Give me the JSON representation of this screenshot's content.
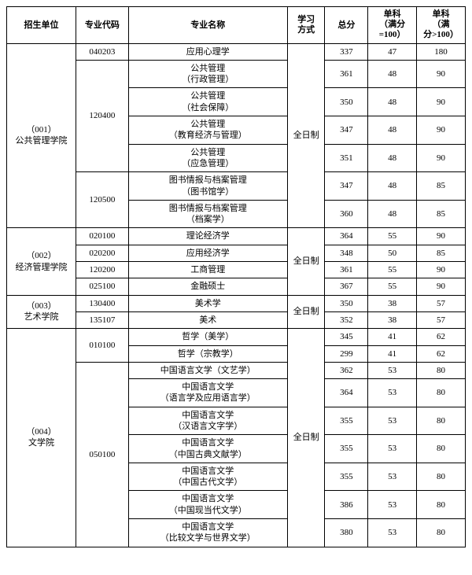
{
  "headers": {
    "unit": "招生单位",
    "code": "专业代码",
    "major": "专业名称",
    "mode": "学习\n方式",
    "total": "总分",
    "sub1": "单科\n（满分\n=100）",
    "sub2": "单科\n（满\n分>100）"
  },
  "groups": [
    {
      "unit": "（001）\n公共管理学院",
      "mode": "全日制",
      "codeBlocks": [
        {
          "code": "040203",
          "rows": [
            {
              "major": "应用心理学",
              "total": 337,
              "s1": 47,
              "s2": 180
            }
          ]
        },
        {
          "code": "120400",
          "rows": [
            {
              "major": "公共管理\n（行政管理）",
              "total": 361,
              "s1": 48,
              "s2": 90
            },
            {
              "major": "公共管理\n（社会保障）",
              "total": 350,
              "s1": 48,
              "s2": 90
            },
            {
              "major": "公共管理\n（教育经济与管理）",
              "total": 347,
              "s1": 48,
              "s2": 90
            },
            {
              "major": "公共管理\n（应急管理）",
              "total": 351,
              "s1": 48,
              "s2": 90
            }
          ]
        },
        {
          "code": "120500",
          "rows": [
            {
              "major": "图书情报与档案管理\n（图书馆学）",
              "total": 347,
              "s1": 48,
              "s2": 85
            },
            {
              "major": "图书情报与档案管理\n（档案学）",
              "total": 360,
              "s1": 48,
              "s2": 85
            }
          ]
        }
      ]
    },
    {
      "unit": "（002）\n经济管理学院",
      "mode": "全日制",
      "codeBlocks": [
        {
          "code": "020100",
          "rows": [
            {
              "major": "理论经济学",
              "total": 364,
              "s1": 55,
              "s2": 90
            }
          ]
        },
        {
          "code": "020200",
          "rows": [
            {
              "major": "应用经济学",
              "total": 348,
              "s1": 50,
              "s2": 85
            }
          ]
        },
        {
          "code": "120200",
          "rows": [
            {
              "major": "工商管理",
              "total": 361,
              "s1": 55,
              "s2": 90
            }
          ]
        },
        {
          "code": "025100",
          "rows": [
            {
              "major": "金融硕士",
              "total": 367,
              "s1": 55,
              "s2": 90
            }
          ]
        }
      ]
    },
    {
      "unit": "（003）\n艺术学院",
      "mode": "全日制",
      "codeBlocks": [
        {
          "code": "130400",
          "rows": [
            {
              "major": "美术学",
              "total": 350,
              "s1": 38,
              "s2": 57
            }
          ]
        },
        {
          "code": "135107",
          "rows": [
            {
              "major": "美术",
              "total": 352,
              "s1": 38,
              "s2": 57
            }
          ]
        }
      ]
    },
    {
      "unit": "（004）\n文学院",
      "mode": "全日制",
      "codeBlocks": [
        {
          "code": "010100",
          "rows": [
            {
              "major": "哲学（美学）",
              "total": 345,
              "s1": 41,
              "s2": 62
            },
            {
              "major": "哲学（宗教学）",
              "total": 299,
              "s1": 41,
              "s2": 62
            }
          ]
        },
        {
          "code": "050100",
          "rows": [
            {
              "major": "中国语言文学（文艺学）",
              "total": 362,
              "s1": 53,
              "s2": 80
            },
            {
              "major": "中国语言文学\n（语言学及应用语言学）",
              "total": 364,
              "s1": 53,
              "s2": 80
            },
            {
              "major": "中国语言文学\n（汉语言文字学）",
              "total": 355,
              "s1": 53,
              "s2": 80
            },
            {
              "major": "中国语言文学\n（中国古典文献学）",
              "total": 355,
              "s1": 53,
              "s2": 80
            },
            {
              "major": "中国语言文学\n（中国古代文学）",
              "total": 355,
              "s1": 53,
              "s2": 80
            },
            {
              "major": "中国语言文学\n（中国现当代文学）",
              "total": 386,
              "s1": 53,
              "s2": 80
            },
            {
              "major": "中国语言文学\n（比较文学与世界文学）",
              "total": 380,
              "s1": 53,
              "s2": 80
            }
          ]
        }
      ]
    }
  ]
}
